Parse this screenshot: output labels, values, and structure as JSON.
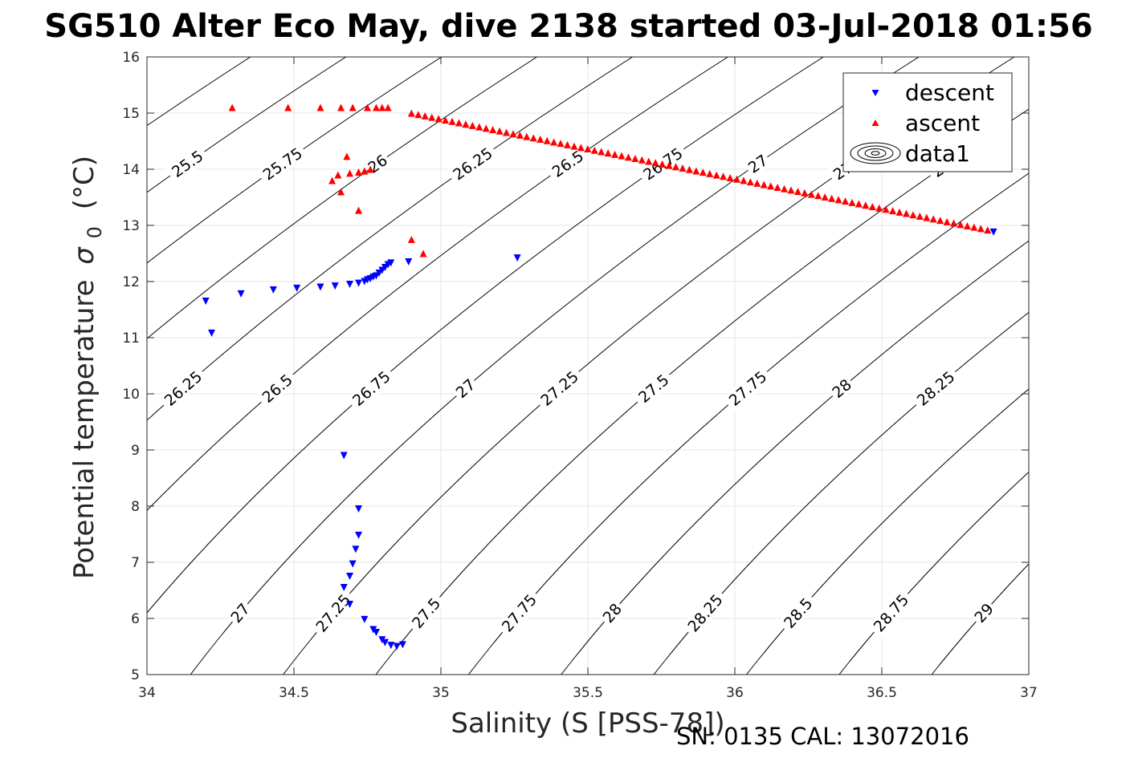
{
  "chart_data": {
    "type": "scatter",
    "title": "SG510 Alter Eco May, dive 2138 started 03-Jul-2018 01:56",
    "xlabel": "Salinity (S [PSS-78])",
    "ylabel": "Potential temperature",
    "ylabel_symbol": "σ",
    "ylabel_sub": "0",
    "ylabel_unit": "(°C)",
    "xlim": [
      34,
      37
    ],
    "ylim": [
      5,
      16
    ],
    "xticks": [
      "34",
      "34.5",
      "35",
      "35.5",
      "36",
      "36.5",
      "37"
    ],
    "yticks": [
      "5",
      "6",
      "7",
      "8",
      "9",
      "10",
      "11",
      "12",
      "13",
      "14",
      "15",
      "16"
    ],
    "grid": true,
    "legend": {
      "placement": "top-right",
      "entries": [
        "descent",
        "ascent",
        "data1"
      ]
    },
    "footer": "SN: 0135  CAL: 13072016",
    "colors": {
      "descent": "#0000ff",
      "ascent": "#ff0000",
      "contour": "#000000",
      "grid": "#e6e6e6"
    },
    "contour_levels": [
      "25.25",
      "25.5",
      "25.75",
      "26",
      "26.25",
      "26.5",
      "26.75",
      "27",
      "27.25",
      "27.5",
      "27.75",
      "28",
      "28.25",
      "28.5",
      "28.75",
      "29"
    ],
    "series": [
      {
        "name": "descent",
        "marker": "triangle-down",
        "points": [
          [
            34.2,
            11.65
          ],
          [
            34.22,
            11.08
          ],
          [
            34.32,
            11.78
          ],
          [
            34.43,
            11.85
          ],
          [
            34.51,
            11.88
          ],
          [
            34.59,
            11.9
          ],
          [
            34.64,
            11.92
          ],
          [
            34.69,
            11.95
          ],
          [
            34.72,
            11.97
          ],
          [
            34.74,
            12.0
          ],
          [
            34.75,
            12.03
          ],
          [
            34.76,
            12.05
          ],
          [
            34.77,
            12.08
          ],
          [
            34.78,
            12.1
          ],
          [
            34.79,
            12.15
          ],
          [
            34.8,
            12.2
          ],
          [
            34.81,
            12.25
          ],
          [
            34.82,
            12.3
          ],
          [
            34.83,
            12.33
          ],
          [
            34.89,
            12.35
          ],
          [
            35.26,
            12.42
          ],
          [
            34.67,
            8.9
          ],
          [
            34.72,
            7.95
          ],
          [
            34.72,
            7.48
          ],
          [
            34.71,
            7.23
          ],
          [
            34.7,
            6.97
          ],
          [
            34.69,
            6.75
          ],
          [
            34.67,
            6.55
          ],
          [
            34.69,
            6.25
          ],
          [
            34.74,
            5.98
          ],
          [
            34.77,
            5.8
          ],
          [
            34.78,
            5.75
          ],
          [
            34.8,
            5.62
          ],
          [
            34.81,
            5.57
          ],
          [
            34.83,
            5.52
          ],
          [
            34.85,
            5.5
          ],
          [
            34.87,
            5.53
          ],
          [
            36.88,
            12.88
          ]
        ]
      },
      {
        "name": "ascent",
        "marker": "triangle-up",
        "points": [
          [
            34.29,
            15.1
          ],
          [
            34.48,
            15.1
          ],
          [
            34.59,
            15.1
          ],
          [
            34.66,
            15.1
          ],
          [
            34.7,
            15.1
          ],
          [
            34.75,
            15.1
          ],
          [
            34.78,
            15.1
          ],
          [
            34.8,
            15.1
          ],
          [
            34.82,
            15.1
          ],
          [
            34.68,
            14.23
          ],
          [
            34.66,
            13.6
          ],
          [
            34.65,
            13.9
          ],
          [
            34.63,
            13.8
          ],
          [
            34.69,
            13.93
          ],
          [
            34.72,
            13.95
          ],
          [
            34.74,
            13.97
          ],
          [
            34.76,
            14.0
          ],
          [
            34.72,
            13.27
          ],
          [
            34.9,
            12.75
          ],
          [
            34.94,
            12.5
          ]
        ],
        "line_segment": {
          "from": [
            34.9,
            15.0
          ],
          "to": [
            36.86,
            12.92
          ],
          "count": 86
        }
      }
    ]
  }
}
